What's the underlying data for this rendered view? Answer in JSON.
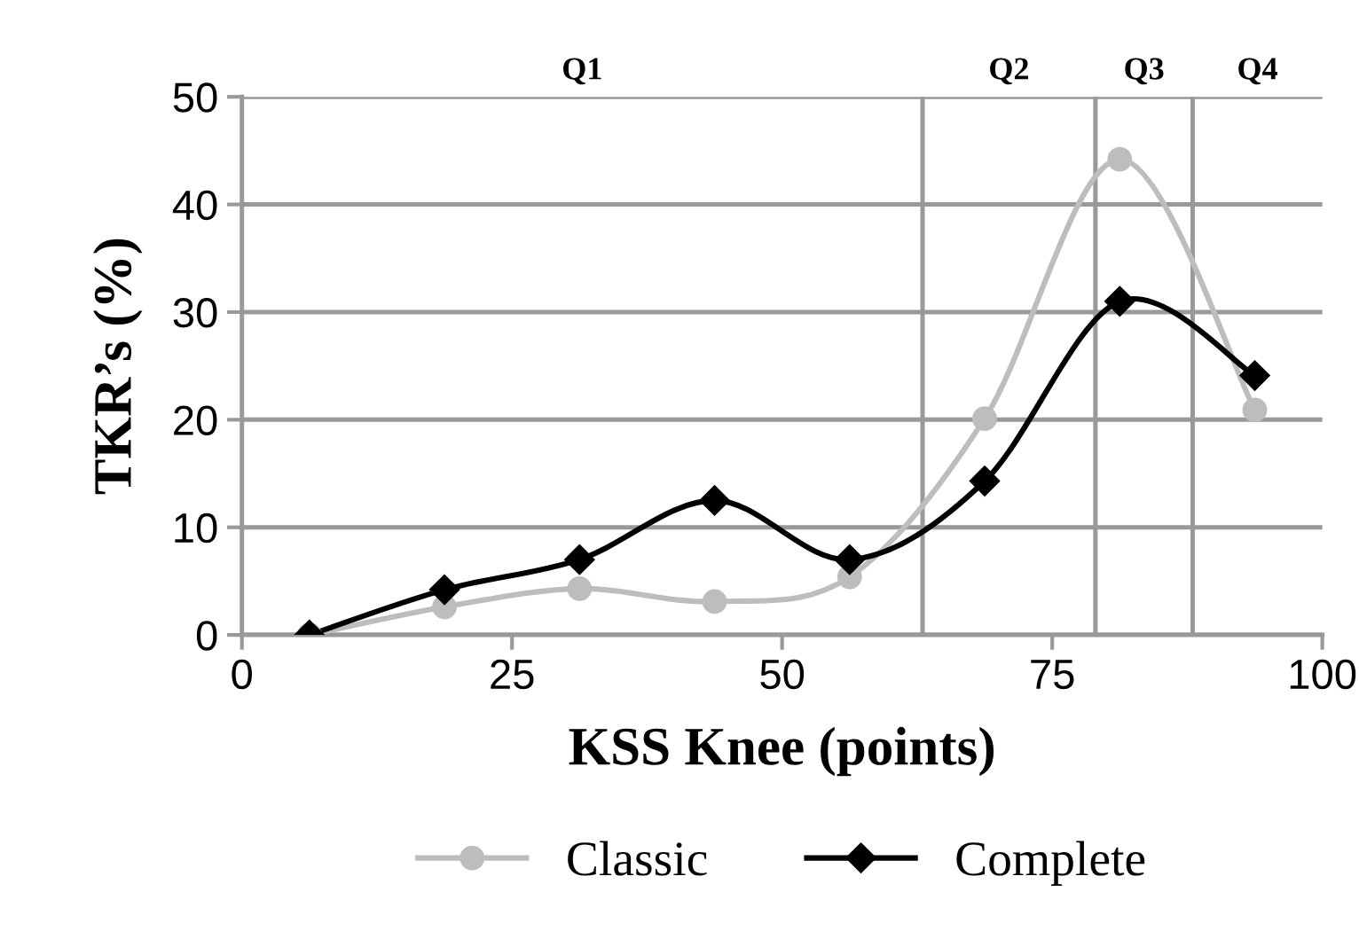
{
  "chart_data": {
    "type": "line",
    "xlabel": "KSS Knee (points)",
    "ylabel": "TKR’s (%)",
    "x": [
      6.25,
      18.75,
      31.25,
      43.75,
      56.25,
      68.75,
      81.25,
      93.75
    ],
    "series": [
      {
        "name": "Classic",
        "color": "#bdbdbd",
        "marker": "circle",
        "values": [
          0,
          2.6,
          4.3,
          3.1,
          5.4,
          20.1,
          44.2,
          20.9
        ]
      },
      {
        "name": "Complete",
        "color": "#000000",
        "marker": "diamond",
        "values": [
          0,
          4.2,
          7.0,
          12.5,
          7.0,
          14.3,
          31.0,
          24.1
        ]
      }
    ],
    "xlim": [
      0,
      100
    ],
    "xticks": [
      0,
      25,
      50,
      75,
      100
    ],
    "ylim": [
      0,
      50
    ],
    "yticks": [
      0,
      10,
      20,
      30,
      40,
      50
    ],
    "grid": "y",
    "legend": "bottom",
    "line_style": "solid",
    "ref_lines": [
      {
        "axis": "x",
        "value": 63,
        "color": "#999999"
      },
      {
        "axis": "x",
        "value": 79,
        "color": "#999999"
      },
      {
        "axis": "x",
        "value": 88,
        "color": "#999999"
      }
    ],
    "annotations": [
      "Q1",
      "Q2",
      "Q3",
      "Q4"
    ]
  }
}
